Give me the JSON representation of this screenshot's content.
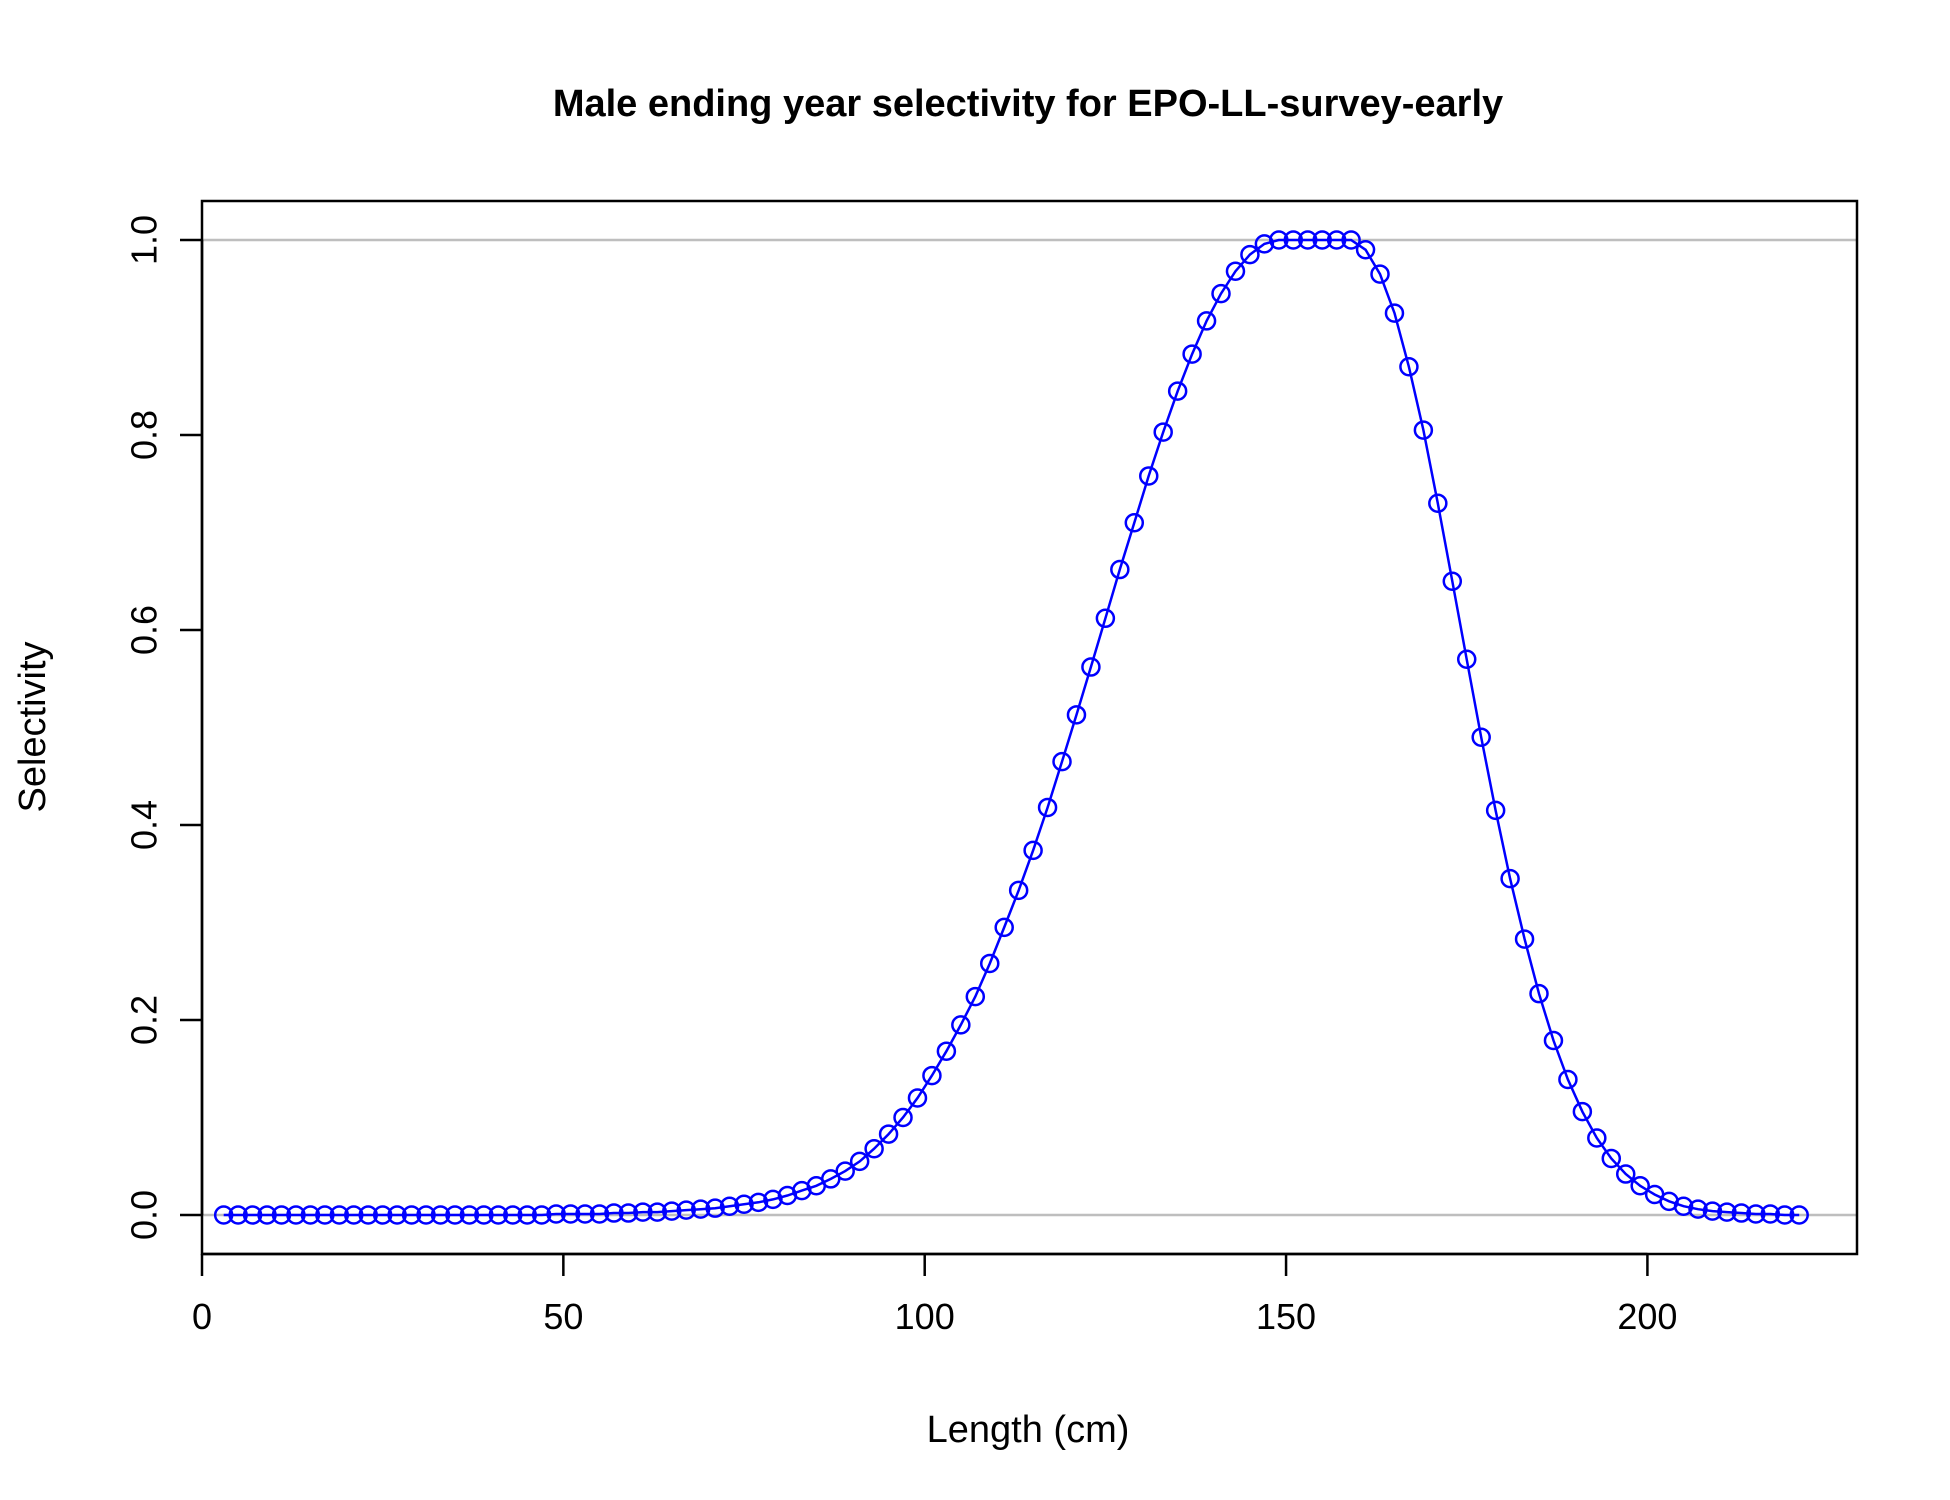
{
  "chart_data": {
    "type": "line",
    "title": "Male ending year selectivity for EPO-LL-survey-early",
    "xlabel": "Length (cm)",
    "ylabel": "Selectivity",
    "xlim": [
      0,
      229
    ],
    "ylim": [
      -0.04,
      1.04
    ],
    "x_ticks": [
      0,
      50,
      100,
      150,
      200
    ],
    "y_ticks": [
      0.0,
      0.2,
      0.4,
      0.6,
      0.8,
      1.0
    ],
    "x_tick_labels": [
      "0",
      "50",
      "100",
      "150",
      "200"
    ],
    "y_tick_labels": [
      "0.0",
      "0.2",
      "0.4",
      "0.6",
      "0.8",
      "1.0"
    ],
    "reference_lines": [
      0,
      1
    ],
    "grid": false,
    "line_color": "#0000ff",
    "reference_color": "#bebebe",
    "series": [
      {
        "x": [
          3,
          5,
          7,
          9,
          11,
          13,
          15,
          17,
          19,
          21,
          23,
          25,
          27,
          29,
          31,
          33,
          35,
          37,
          39,
          41,
          43,
          45,
          47,
          49,
          51,
          53,
          55,
          57,
          59,
          61,
          63,
          65,
          67,
          69,
          71,
          73,
          75,
          77,
          79,
          81,
          83,
          85,
          87,
          89,
          91,
          93,
          95,
          97,
          99,
          101,
          103,
          105,
          107,
          109,
          111,
          113,
          115,
          117,
          119,
          121,
          123,
          125,
          127,
          129,
          131,
          133,
          135,
          137,
          139,
          141,
          143,
          145,
          147,
          149,
          151,
          153,
          155,
          157,
          159,
          161,
          163,
          165,
          167,
          169,
          171,
          173,
          175,
          177,
          179,
          181,
          183,
          185,
          187,
          189,
          191,
          193,
          195,
          197,
          199,
          201,
          203,
          205,
          207,
          209,
          211,
          213,
          215,
          217,
          219,
          221
        ],
        "y": [
          0,
          0,
          0,
          0,
          0,
          0,
          0,
          0,
          0,
          0,
          0,
          0,
          0,
          0,
          0,
          0,
          0,
          0,
          0,
          0,
          0,
          0,
          0,
          0.001,
          0.001,
          0.001,
          0.001,
          0.002,
          0.002,
          0.003,
          0.003,
          0.004,
          0.005,
          0.006,
          0.007,
          0.009,
          0.011,
          0.013,
          0.016,
          0.02,
          0.025,
          0.03,
          0.037,
          0.045,
          0.055,
          0.068,
          0.083,
          0.1,
          0.12,
          0.143,
          0.168,
          0.195,
          0.224,
          0.258,
          0.295,
          0.333,
          0.374,
          0.418,
          0.465,
          0.513,
          0.562,
          0.612,
          0.662,
          0.71,
          0.758,
          0.803,
          0.845,
          0.883,
          0.917,
          0.945,
          0.968,
          0.985,
          0.996,
          1.0,
          1.0,
          1.0,
          1.0,
          1.0,
          1.0,
          0.99,
          0.965,
          0.925,
          0.87,
          0.805,
          0.73,
          0.65,
          0.57,
          0.49,
          0.415,
          0.345,
          0.283,
          0.227,
          0.179,
          0.139,
          0.106,
          0.079,
          0.058,
          0.042,
          0.03,
          0.021,
          0.014,
          0.009,
          0.006,
          0.004,
          0.003,
          0.002,
          0.001,
          0.001,
          0,
          0
        ]
      }
    ]
  }
}
